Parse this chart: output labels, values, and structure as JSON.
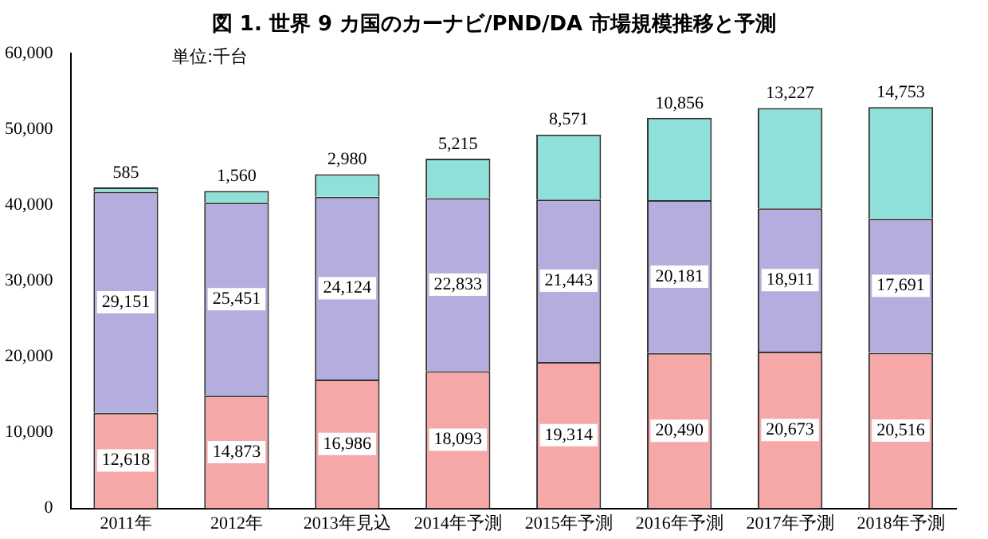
{
  "chart_data": {
    "type": "bar",
    "stacked": true,
    "title": "図 1. 世界 9 カ国のカーナビ/PND/DA 市場規模推移と予測",
    "annotations": [
      "単位:千台"
    ],
    "categories": [
      "2011年",
      "2012年",
      "2013年見込",
      "2014年予測",
      "2015年予測",
      "2016年予測",
      "2017年予測",
      "2018年予測"
    ],
    "ylim": [
      0,
      60000
    ],
    "yticks": [
      0,
      {
        "value": 10000,
        "label": "10,000"
      },
      {
        "value": 20000,
        "label": "20,000"
      },
      {
        "value": 30000,
        "label": "30,000"
      },
      {
        "value": 40000,
        "label": "40,000"
      },
      {
        "value": 50000,
        "label": "50,000"
      },
      {
        "value": 60000,
        "label": "60,000"
      }
    ],
    "grid": false,
    "legend": false,
    "series": [
      {
        "color": "#f6a8a8",
        "values": [
          12618,
          14873,
          16986,
          18093,
          19314,
          20490,
          20673,
          20516
        ],
        "value_labels": [
          "12,618",
          "14,873",
          "16,986",
          "18,093",
          "19,314",
          "20,490",
          "20,673",
          "20,516"
        ]
      },
      {
        "color": "#b4aede",
        "values": [
          29151,
          25451,
          24124,
          22833,
          21443,
          20181,
          18911,
          17691
        ],
        "value_labels": [
          "29,151",
          "25,451",
          "24,124",
          "22,833",
          "21,443",
          "20,181",
          "18,911",
          "17,691"
        ]
      },
      {
        "color": "#8fe0d8",
        "values": [
          585,
          1560,
          2980,
          5215,
          8571,
          10856,
          13227,
          14753
        ],
        "value_labels": [
          "585",
          "1,560",
          "2,980",
          "5,215",
          "8,571",
          "10,856",
          "13,227",
          "14,753"
        ]
      }
    ]
  }
}
